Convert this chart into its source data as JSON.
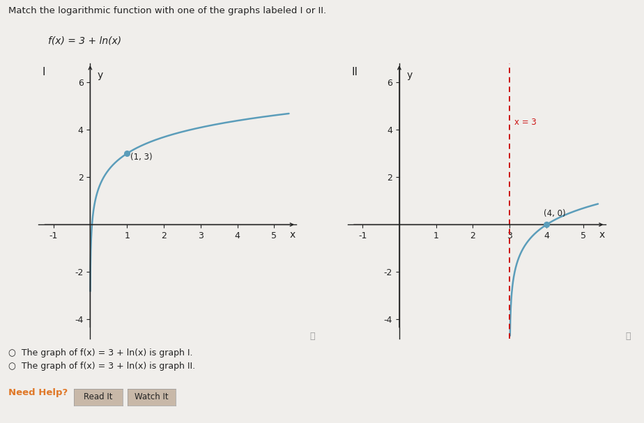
{
  "background_color": "#f0eeeb",
  "title_text": "Match the logarithmic function with one of the graphs labeled I or II.",
  "function_label": "f(x) = 3 + ln(x)",
  "graph1_label": "I",
  "graph2_label": "II",
  "curve_color": "#5b9dba",
  "curve_linewidth": 1.8,
  "axis_color": "#222222",
  "point1_x": 1,
  "point1_y": 3,
  "point1_label": "(1, 3)",
  "point2_x": 4,
  "point2_y": 0,
  "point2_label": "(4, 0)",
  "asymptote_x": 3,
  "asymptote_label": "x = 3",
  "asymptote_color": "#cc1111",
  "xlim": [
    -1.4,
    5.6
  ],
  "ylim": [
    -4.8,
    6.8
  ],
  "xticks": [
    -1,
    1,
    2,
    3,
    4,
    5
  ],
  "yticks": [
    -4,
    -2,
    2,
    4,
    6
  ],
  "xlabel": "x",
  "ylabel": "y",
  "radio_text1": "The graph of f(x) = 3 + ln(x) is graph I.",
  "radio_text2": "The graph of f(x) = 3 + ln(x) is graph II.",
  "need_help_text": "Need Help?",
  "btn1_text": "Read It",
  "btn2_text": "Watch It",
  "text_color": "#222222",
  "need_help_color": "#e07828",
  "btn_color": "#c8b8a8",
  "info_color": "#999999",
  "font_size_axis": 9,
  "font_size_label": 10,
  "font_size_title": 9.5
}
